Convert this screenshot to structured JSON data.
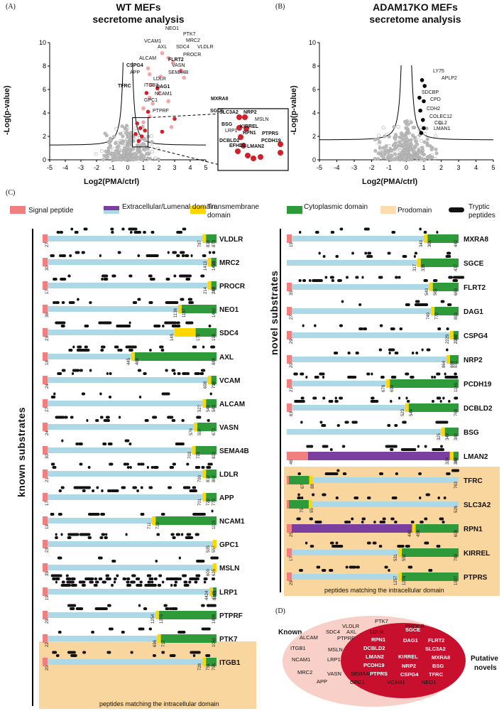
{
  "panelA": {
    "letter": "(A)",
    "title1": "WT MEFs",
    "title2": "secretome analysis",
    "ylabel": "-Log(p-value)",
    "xlabel": "Log2(PMA/ctrl)",
    "xticks": [
      "-5",
      "-4",
      "-3",
      "-2",
      "-1",
      "0",
      "1",
      "2",
      "3",
      "4",
      "5"
    ],
    "yticks": [
      "0",
      "2",
      "4",
      "6",
      "8",
      "10"
    ],
    "labels": [
      {
        "t": "NEO1",
        "b": false
      },
      {
        "t": "PTK7",
        "b": false
      },
      {
        "t": "MRC2",
        "b": false
      },
      {
        "t": "VCAM1",
        "b": false
      },
      {
        "t": "AXL",
        "b": false
      },
      {
        "t": "SDC4",
        "b": false
      },
      {
        "t": "VLDLR",
        "b": false
      },
      {
        "t": "PROCR",
        "b": false
      },
      {
        "t": "ALCAM",
        "b": false
      },
      {
        "t": "FLRT2",
        "b": true
      },
      {
        "t": "CSPG4",
        "b": true
      },
      {
        "t": "VASN",
        "b": false
      },
      {
        "t": "APP",
        "b": false
      },
      {
        "t": "SEMA4B",
        "b": false
      },
      {
        "t": "LDLR",
        "b": false
      },
      {
        "t": "ITGB1",
        "b": false
      },
      {
        "t": "TFRC",
        "b": true
      },
      {
        "t": "DAG1",
        "b": true
      },
      {
        "t": "NCAM1",
        "b": false
      },
      {
        "t": "GPC1",
        "b": false
      },
      {
        "t": "MXRA8",
        "b": true
      },
      {
        "t": "PTPRF",
        "b": false
      },
      {
        "t": "SGCE",
        "b": true
      }
    ],
    "inset": [
      {
        "t": "SLC3A2",
        "b": true
      },
      {
        "t": "NRP2",
        "b": true
      },
      {
        "t": "MSLN",
        "b": false
      },
      {
        "t": "BSG",
        "b": true
      },
      {
        "t": "KIRREL",
        "b": true
      },
      {
        "t": "LRP1",
        "b": false
      },
      {
        "t": "RPN1",
        "b": true
      },
      {
        "t": "PTPRS",
        "b": true
      },
      {
        "t": "DCBLD2",
        "b": true
      },
      {
        "t": "PCDH19",
        "b": true
      },
      {
        "t": "EFHD2",
        "b": true
      },
      {
        "t": "LMAN2",
        "b": true
      }
    ]
  },
  "panelB": {
    "letter": "(B)",
    "title1": "ADAM17KO MEFs",
    "title2": "secretome analysis",
    "ylabel": "-Log(p-value)",
    "xlabel": "Log2(PMA/ctrl)",
    "labels": [
      "LY75",
      "APLP2",
      "SDCBP",
      "CPD",
      "CDH2",
      "COLEC12",
      "CCL2",
      "LMAN1"
    ]
  },
  "panelC": {
    "letter": "(C)",
    "legend": [
      "Signal peptide",
      "Extracellular/Lumenal domain",
      "Transmembrane domain",
      "Cytoplasmic domain",
      "Prodomain",
      "Tryptic peptides"
    ],
    "colors": {
      "sp": "#f08080",
      "ext": "#add8e6",
      "lum": "#7b3fa0",
      "tm": "#ffd700",
      "cyt": "#2e9a3a",
      "pro": "#fddcad",
      "pep": "#111111",
      "box": "#f9d69e"
    },
    "known_label": "known substrates",
    "novel_label": "novel substrates",
    "box_caption": "peptides matching the intracellular domain",
    "known": [
      {
        "name": "VLDLR",
        "sp": 1,
        "nums": [
          "27",
          "787",
          "819",
          "873"
        ]
      },
      {
        "name": "MRC2",
        "sp": 1,
        "nums": [
          "30",
          "1413",
          "1433",
          "1479"
        ]
      },
      {
        "name": "PROCR",
        "sp": 1,
        "nums": [
          "17",
          "214",
          "235",
          "242"
        ]
      },
      {
        "name": "NEO1",
        "sp": 1,
        "nums": [
          "36",
          "1136",
          "1157",
          "1462"
        ]
      },
      {
        "name": "SDC4",
        "sp": 1,
        "nums": [
          "23",
          "145",
          "170",
          "198"
        ]
      },
      {
        "name": "AXL",
        "sp": 1,
        "nums": [
          "18",
          "445",
          "466",
          "888"
        ]
      },
      {
        "name": "VCAM",
        "sp": 1,
        "nums": [
          "24",
          "698",
          "719",
          "739"
        ]
      },
      {
        "name": "ALCAM",
        "sp": 1,
        "nums": [
          "27",
          "527",
          "549",
          "583"
        ]
      },
      {
        "name": "VASN",
        "sp": 1,
        "nums": [
          "24",
          "576",
          "597",
          "673"
        ]
      },
      {
        "name": "SEMA4B",
        "sp": 1,
        "nums": [
          "30",
          "703",
          "723",
          "823"
        ]
      },
      {
        "name": "LDLR",
        "sp": 1,
        "nums": [
          "21",
          "790",
          "812",
          "862"
        ]
      },
      {
        "name": "APP",
        "sp": 1,
        "nums": [
          "17",
          "701",
          "722",
          "770"
        ]
      },
      {
        "name": "NCAM1",
        "sp": 1,
        "nums": [
          "19",
          "711",
          "729",
          "1115"
        ]
      },
      {
        "name": "GPC1",
        "sp": 1,
        "nums": [
          "23",
          "535",
          "557"
        ]
      },
      {
        "name": "MSLN",
        "sp": 1,
        "nums": [
          "35",
          "600",
          "625"
        ]
      },
      {
        "name": "LRP1",
        "sp": 1,
        "nums": [
          "19",
          "4424",
          "4445",
          "4545"
        ]
      },
      {
        "name": "PTPRF",
        "sp": 1,
        "nums": [
          "29",
          "1254",
          "1275",
          "1898"
        ]
      },
      {
        "name": "PTK7",
        "sp": 1,
        "nums": [
          "22",
          "696",
          "717",
          "1062"
        ]
      },
      {
        "name": "ITGB1",
        "sp": 1,
        "nums": [
          "20",
          "728",
          "751",
          "798"
        ]
      }
    ],
    "novel": [
      {
        "name": "MXRA8",
        "nums": [
          "19",
          "340",
          "361",
          "442"
        ]
      },
      {
        "name": "SGCE",
        "nums": [
          "317",
          "338",
          "437"
        ]
      },
      {
        "name": "FLRT2",
        "nums": [
          "35",
          "540",
          "561",
          "660"
        ]
      },
      {
        "name": "DAG1",
        "nums": [
          "27",
          "749",
          "772",
          "893"
        ]
      },
      {
        "name": "CSPG4",
        "nums": [
          "29",
          "2229",
          "2250",
          "2327"
        ]
      },
      {
        "name": "NRP2",
        "nums": [
          "20",
          "864",
          "889",
          "931"
        ]
      },
      {
        "name": "PCDH19",
        "nums": [
          "21",
          "678",
          "699",
          "1145"
        ]
      },
      {
        "name": "DCBLD2",
        "nums": [
          "63",
          "523",
          "544",
          "769"
        ]
      },
      {
        "name": "BSG",
        "nums": [
          "325",
          "349",
          "380"
        ]
      },
      {
        "name": "LMAN2",
        "nums": [
          "46",
          "324",
          "347",
          "358"
        ]
      },
      {
        "name": "TFRC",
        "nums": [
          "67",
          "88",
          "763"
        ]
      },
      {
        "name": "SLC3A2",
        "nums": [
          "75",
          "95",
          "526"
        ]
      },
      {
        "name": "RPN1",
        "nums": [
          "25",
          "440",
          "458",
          "608"
        ]
      },
      {
        "name": "KIRREL",
        "nums": [
          "17",
          "531",
          "552",
          "789"
        ]
      },
      {
        "name": "PTPRS",
        "nums": [
          "29",
          "1257",
          "1278",
          "1907"
        ]
      }
    ]
  },
  "panelD": {
    "letter": "(D)",
    "known_title": "Known",
    "novel_title1": "Putative",
    "novel_title2": "novels",
    "outer": [
      "PTK7",
      "VLDLR",
      "PROCR",
      "SDC4",
      "AXL",
      "LDLR",
      "ALCAM",
      "PTPRF",
      "ITGB1",
      "MSLN",
      "NCAM1",
      "LRP1",
      "MRC2",
      "VASN",
      "SEMA4B",
      "APP",
      "GPC1",
      "VCAM1",
      "NEO1"
    ],
    "inner": [
      "SGCE",
      "RPN1",
      "DAG1",
      "FLRT2",
      "DCBLD2",
      "SLC3A2",
      "LMAN2",
      "KIRREL",
      "MXRA8",
      "PCDH19",
      "NRP2",
      "BSG",
      "PTPRS",
      "CSPG4",
      "TFRC"
    ]
  }
}
